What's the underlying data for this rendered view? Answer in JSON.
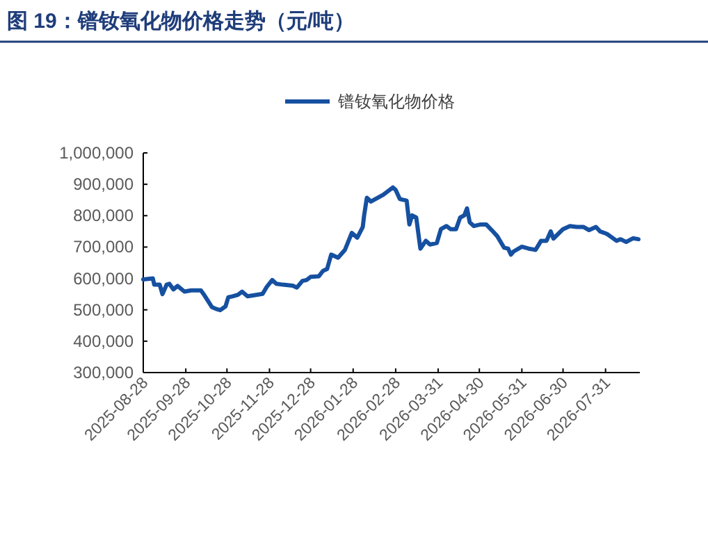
{
  "chart_data": {
    "type": "line",
    "title": "图 19：镨钕氧化物价格走势（元/吨）",
    "legend": "top",
    "xlim": [
      "2025-08-28",
      "2026-08-25"
    ],
    "xticks": [
      "2025-08-28",
      "2025-09-28",
      "2025-10-28",
      "2025-11-28",
      "2025-12-28",
      "2026-01-28",
      "2026-02-28",
      "2026-03-31",
      "2026-04-30",
      "2026-05-31",
      "2026-06-30",
      "2026-07-31"
    ],
    "ylim": [
      300000,
      1000000
    ],
    "yticks": [
      {
        "value": 300000,
        "label": "300,000"
      },
      {
        "value": 400000,
        "label": "400,000"
      },
      {
        "value": 500000,
        "label": "500,000"
      },
      {
        "value": 600000,
        "label": "600,000"
      },
      {
        "value": 700000,
        "label": "700,000"
      },
      {
        "value": 800000,
        "label": "800,000"
      },
      {
        "value": 900000,
        "label": "900,000"
      },
      {
        "value": 1000000,
        "label": "1,000,000"
      }
    ],
    "x": [
      "2025-08-28",
      "2025-09-04",
      "2025-09-05",
      "2025-09-09",
      "2025-09-11",
      "2025-09-14",
      "2025-09-16",
      "2025-09-19",
      "2025-09-22",
      "2025-09-27",
      "2025-10-02",
      "2025-10-09",
      "2025-10-11",
      "2025-10-17",
      "2025-10-20",
      "2025-10-23",
      "2025-10-27",
      "2025-10-29",
      "2025-11-01",
      "2025-11-05",
      "2025-11-08",
      "2025-11-12",
      "2025-11-16",
      "2025-11-23",
      "2025-11-26",
      "2025-11-30",
      "2025-12-03",
      "2025-12-08",
      "2025-12-15",
      "2025-12-18",
      "2025-12-22",
      "2025-12-25",
      "2025-12-28",
      "2026-01-03",
      "2026-01-06",
      "2026-01-09",
      "2026-01-12",
      "2026-01-17",
      "2026-01-22",
      "2026-01-27",
      "2026-01-31",
      "2026-02-04",
      "2026-02-05",
      "2026-02-07",
      "2026-02-10",
      "2026-02-19",
      "2026-02-26",
      "2026-02-28",
      "2026-03-03",
      "2026-03-08",
      "2026-03-10",
      "2026-03-12",
      "2026-03-15",
      "2026-03-18",
      "2026-03-22",
      "2026-03-25",
      "2026-03-30",
      "2026-04-02",
      "2026-04-06",
      "2026-04-09",
      "2026-04-13",
      "2026-04-16",
      "2026-04-19",
      "2026-04-21",
      "2026-04-23",
      "2026-04-26",
      "2026-05-01",
      "2026-05-05",
      "2026-05-09",
      "2026-05-13",
      "2026-05-18",
      "2026-05-21",
      "2026-05-23",
      "2026-05-25",
      "2026-05-31",
      "2026-06-05",
      "2026-06-10",
      "2026-06-14",
      "2026-06-18",
      "2026-06-21",
      "2026-06-23",
      "2026-06-30",
      "2026-07-05",
      "2026-07-10",
      "2026-07-15",
      "2026-07-19",
      "2026-07-24",
      "2026-07-27",
      "2026-08-01",
      "2026-08-08",
      "2026-08-11",
      "2026-08-15",
      "2026-08-20",
      "2026-08-24"
    ],
    "series": [
      {
        "name": "镨钕氧化物价格",
        "color": "#1650a0",
        "values": [
          597000,
          600000,
          580000,
          580000,
          550000,
          580000,
          583000,
          565000,
          576000,
          558000,
          562000,
          562000,
          550000,
          509000,
          503000,
          499000,
          511000,
          540000,
          543000,
          548000,
          558000,
          543000,
          546000,
          551000,
          573000,
          595000,
          583000,
          580000,
          577000,
          571000,
          592000,
          595000,
          605000,
          607000,
          624000,
          630000,
          676000,
          666000,
          691000,
          745000,
          730000,
          764000,
          801000,
          857000,
          845000,
          867000,
          890000,
          882000,
          853000,
          848000,
          772000,
          801000,
          794000,
          695000,
          720000,
          708000,
          713000,
          757000,
          767000,
          757000,
          757000,
          794000,
          801000,
          823000,
          779000,
          767000,
          772000,
          772000,
          754000,
          735000,
          698000,
          695000,
          676000,
          686000,
          701000,
          695000,
          691000,
          720000,
          720000,
          750000,
          727000,
          757000,
          767000,
          764000,
          764000,
          754000,
          764000,
          750000,
          742000,
          720000,
          725000,
          716000,
          728000,
          725000
        ]
      }
    ]
  }
}
